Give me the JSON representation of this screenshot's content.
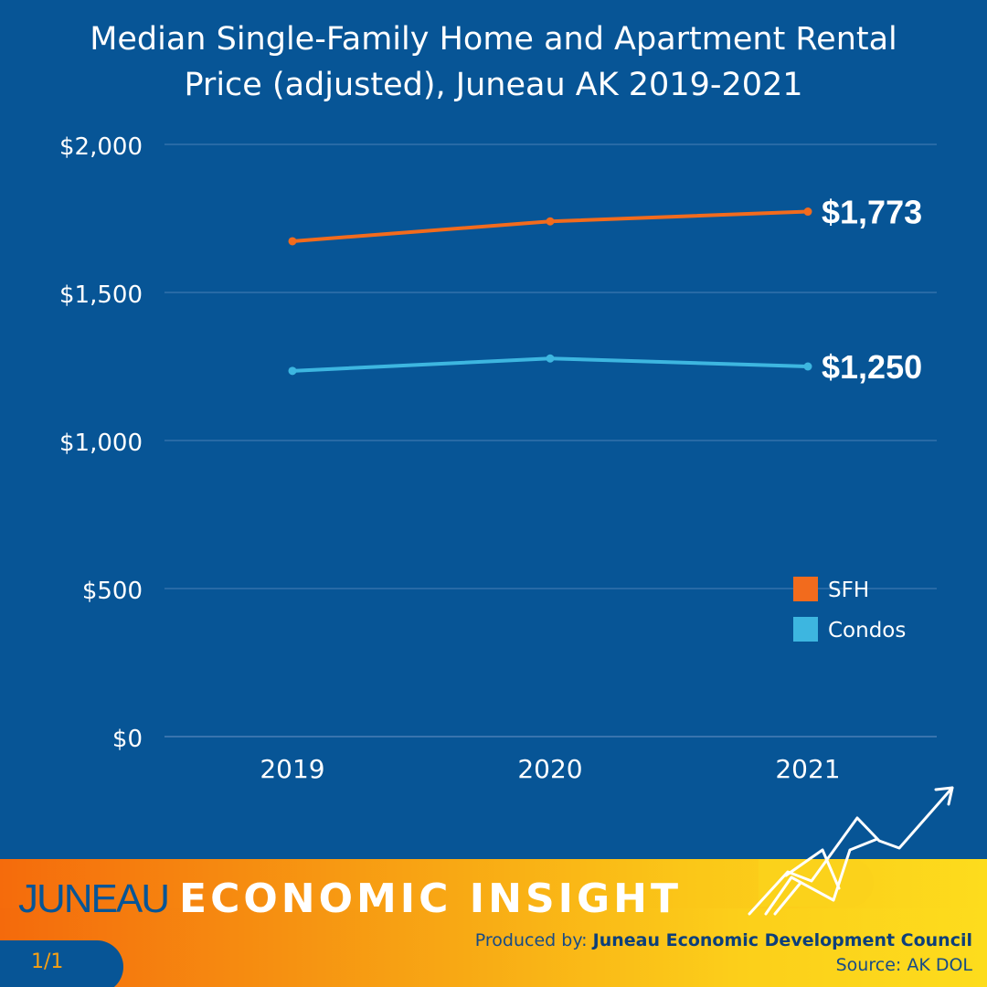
{
  "header": {
    "title_line1": "Median Single-Family Home and Apartment Rental",
    "title_line2": "Price (adjusted), Juneau AK 2019-2021"
  },
  "colors": {
    "background": "#075596",
    "sfh": "#f26b1d",
    "condos": "#3db6e0",
    "grid": "#4a7fb5",
    "accent_orange": "#f56b0c",
    "accent_yellow": "#fddc1d"
  },
  "chart_data": {
    "type": "line",
    "title": "Median Single-Family Home and Apartment Rental Price (adjusted), Juneau AK 2019-2021",
    "categories": [
      "2019",
      "2020",
      "2021"
    ],
    "series": [
      {
        "name": "SFH",
        "values": [
          1673,
          1740,
          1773
        ],
        "end_label": "$1,773",
        "color": "#f26b1d"
      },
      {
        "name": "Condos",
        "values": [
          1235,
          1277,
          1250
        ],
        "end_label": "$1,250",
        "color": "#3db6e0"
      }
    ],
    "ylim": [
      0,
      2000
    ],
    "yticks": [
      0,
      500,
      1000,
      1500,
      2000
    ],
    "ytick_labels": [
      "$0",
      "$500",
      "$1,000",
      "$1,500",
      "$2,000"
    ],
    "grid": true,
    "legend_position": "lower-right",
    "xlabel": "",
    "ylabel": ""
  },
  "footer": {
    "brand_part1": "JUNEAU",
    "brand_part2": "ECONOMIC INSIGHT",
    "page_indicator": "1/1",
    "produced_prefix": "Produced by: ",
    "produced_org": "Juneau Economic Development Council",
    "source": "Source: AK DOL"
  },
  "icons": {
    "trend": "rising-trend-arrow-icon"
  }
}
